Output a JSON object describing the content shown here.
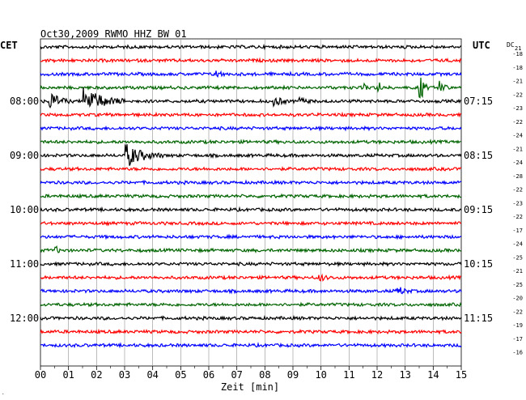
{
  "chart_data": {
    "type": "line",
    "title": "Oct30,2009   RWMO HHZ BW 01",
    "left_timezone": "CET",
    "right_timezone": "UTC",
    "dc_label": "DC",
    "first_dc_value": "21",
    "xlabel": "Zeit [min]",
    "x_ticks": [
      "00",
      "01",
      "02",
      "03",
      "04",
      "05",
      "06",
      "07",
      "08",
      "09",
      "10",
      "11",
      "12",
      "13",
      "14",
      "15"
    ],
    "xlim": [
      0,
      15
    ],
    "grid": true,
    "trace_colors": [
      "#000000",
      "#ff0000",
      "#0000ff",
      "#006400"
    ],
    "left_hour_labels": [
      {
        "row": 4,
        "text": "08:00"
      },
      {
        "row": 8,
        "text": "09:00"
      },
      {
        "row": 12,
        "text": "10:00"
      },
      {
        "row": 16,
        "text": "11:00"
      },
      {
        "row": 20,
        "text": "12:00"
      }
    ],
    "right_hour_labels": [
      {
        "row": 4,
        "text": "07:15"
      },
      {
        "row": 8,
        "text": "08:15"
      },
      {
        "row": 12,
        "text": "09:15"
      },
      {
        "row": 16,
        "text": "10:15"
      },
      {
        "row": 20,
        "text": "11:15"
      }
    ],
    "dc_offsets": [
      "-18",
      "-18",
      "-21",
      "-22",
      "-23",
      "-22",
      "-24",
      "-21",
      "-24",
      "-28",
      "-22",
      "-23",
      "-22",
      "-17",
      "-24",
      "-25",
      "-21",
      "-25",
      "-20",
      "-22",
      "-19",
      "-17",
      "-16"
    ],
    "events": [
      {
        "row": 4,
        "minute": 0.4,
        "amplitude": 0.9,
        "width": 0.45
      },
      {
        "row": 4,
        "minute": 1.6,
        "amplitude": 1.5,
        "width": 0.9
      },
      {
        "row": 4,
        "minute": 8.4,
        "amplitude": 0.5,
        "width": 0.3
      },
      {
        "row": 4,
        "minute": 9.3,
        "amplitude": 0.3,
        "width": 0.25
      },
      {
        "row": 3,
        "minute": 12.1,
        "amplitude": 0.5,
        "width": 0.1
      },
      {
        "row": 3,
        "minute": 13.6,
        "amplitude": 1.2,
        "width": 0.15
      },
      {
        "row": 3,
        "minute": 14.3,
        "amplitude": 1.0,
        "width": 0.15
      },
      {
        "row": 3,
        "minute": 11.6,
        "amplitude": 0.3,
        "width": 0.1
      },
      {
        "row": 8,
        "minute": 3.1,
        "amplitude": 1.2,
        "width": 0.8
      },
      {
        "row": 2,
        "minute": 6.3,
        "amplitude": 0.4,
        "width": 0.2
      },
      {
        "row": 15,
        "minute": 0.6,
        "amplitude": 0.3,
        "width": 0.1
      },
      {
        "row": 17,
        "minute": 10.0,
        "amplitude": 0.3,
        "width": 0.3
      },
      {
        "row": 18,
        "minute": 12.8,
        "amplitude": 0.4,
        "width": 0.3
      }
    ]
  }
}
